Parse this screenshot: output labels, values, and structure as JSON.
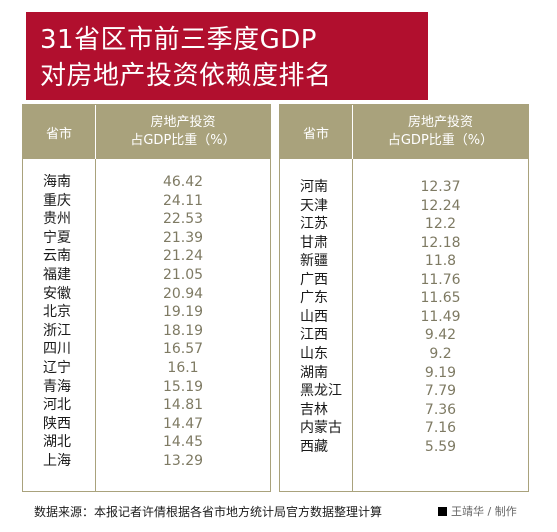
{
  "title_line1": "31省区市前三季度GDP",
  "title_line2": "对房地产投资依赖度排名",
  "header_prov": "省市",
  "header_val_line1": "房地产投资",
  "header_val_line2": "占GDP比重（%）",
  "footer": "数据来源：本报记者许倩根据各省市地方统计局官方数据整理计算",
  "credit": "王靖华 / 制作",
  "colors": {
    "title_bg": "#b10f2e",
    "header_bg": "#a9a27c",
    "value_text": "#7e7a63"
  },
  "chart_data": {
    "type": "table",
    "columns": [
      "省市",
      "房地产投资占GDP比重（%）"
    ],
    "left_table": [
      {
        "province": "海南",
        "value": "46.42"
      },
      {
        "province": "重庆",
        "value": "24.11"
      },
      {
        "province": "贵州",
        "value": "22.53"
      },
      {
        "province": "宁夏",
        "value": "21.39"
      },
      {
        "province": "云南",
        "value": "21.24"
      },
      {
        "province": "福建",
        "value": "21.05"
      },
      {
        "province": "安徽",
        "value": "20.94"
      },
      {
        "province": "北京",
        "value": "19.19"
      },
      {
        "province": "浙江",
        "value": "18.19"
      },
      {
        "province": "四川",
        "value": "16.57"
      },
      {
        "province": "辽宁",
        "value": "16.1"
      },
      {
        "province": "青海",
        "value": "15.19"
      },
      {
        "province": "河北",
        "value": "14.81"
      },
      {
        "province": "陕西",
        "value": "14.47"
      },
      {
        "province": "湖北",
        "value": "14.45"
      },
      {
        "province": "上海",
        "value": "13.29"
      }
    ],
    "right_table": [
      {
        "province": "河南",
        "value": "12.37"
      },
      {
        "province": "天津",
        "value": "12.24"
      },
      {
        "province": "江苏",
        "value": "12.2"
      },
      {
        "province": "甘肃",
        "value": "12.18"
      },
      {
        "province": "新疆",
        "value": "11.8"
      },
      {
        "province": "广西",
        "value": "11.76"
      },
      {
        "province": "广东",
        "value": "11.65"
      },
      {
        "province": "山西",
        "value": "11.49"
      },
      {
        "province": "江西",
        "value": "9.42"
      },
      {
        "province": "山东",
        "value": "9.2"
      },
      {
        "province": "湖南",
        "value": "9.19"
      },
      {
        "province": "黑龙江",
        "value": "7.79"
      },
      {
        "province": "吉林",
        "value": "7.36"
      },
      {
        "province": "内蒙古",
        "value": "7.16"
      },
      {
        "province": "西藏",
        "value": "5.59"
      }
    ]
  }
}
